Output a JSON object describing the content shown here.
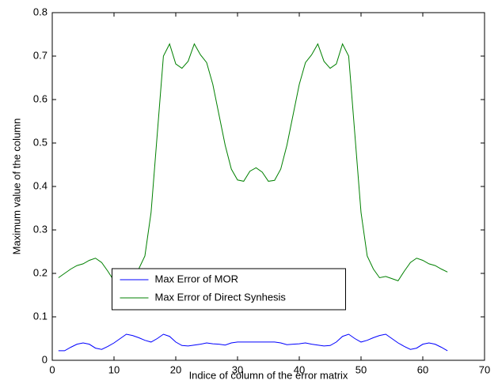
{
  "chart_data": {
    "type": "line",
    "xlabel": "Indice of column of the error matrix",
    "ylabel": "Maximum value of the column",
    "x": [
      1,
      2,
      3,
      4,
      5,
      6,
      7,
      8,
      9,
      10,
      11,
      12,
      13,
      14,
      15,
      16,
      17,
      18,
      19,
      20,
      21,
      22,
      23,
      24,
      25,
      26,
      27,
      28,
      29,
      30,
      31,
      32,
      33,
      34,
      35,
      36,
      37,
      38,
      39,
      40,
      41,
      42,
      43,
      44,
      45,
      46,
      47,
      48,
      49,
      50,
      51,
      52,
      53,
      54,
      55,
      56,
      57,
      58,
      59,
      60,
      61,
      62,
      63,
      64
    ],
    "series": [
      {
        "name": "Max Error of MOR",
        "color": "#0000ff",
        "values": [
          0.022,
          0.022,
          0.03,
          0.037,
          0.04,
          0.037,
          0.028,
          0.025,
          0.032,
          0.04,
          0.05,
          0.06,
          0.057,
          0.052,
          0.046,
          0.042,
          0.05,
          0.06,
          0.055,
          0.042,
          0.034,
          0.033,
          0.035,
          0.037,
          0.04,
          0.038,
          0.037,
          0.035,
          0.04,
          0.042,
          0.042,
          0.042,
          0.042,
          0.042,
          0.042,
          0.042,
          0.04,
          0.036,
          0.037,
          0.038,
          0.04,
          0.037,
          0.035,
          0.033,
          0.034,
          0.042,
          0.055,
          0.06,
          0.05,
          0.042,
          0.046,
          0.052,
          0.057,
          0.06,
          0.05,
          0.04,
          0.032,
          0.025,
          0.028,
          0.037,
          0.04,
          0.037,
          0.03,
          0.022
        ]
      },
      {
        "name": "Max Error of Direct Synhesis",
        "color": "#008000",
        "values": [
          0.19,
          0.2,
          0.21,
          0.218,
          0.222,
          0.23,
          0.235,
          0.225,
          0.205,
          0.183,
          0.188,
          0.193,
          0.19,
          0.21,
          0.24,
          0.34,
          0.52,
          0.7,
          0.728,
          0.682,
          0.672,
          0.688,
          0.728,
          0.703,
          0.685,
          0.635,
          0.565,
          0.495,
          0.44,
          0.415,
          0.412,
          0.435,
          0.443,
          0.433,
          0.412,
          0.414,
          0.44,
          0.495,
          0.565,
          0.635,
          0.685,
          0.703,
          0.728,
          0.688,
          0.672,
          0.682,
          0.728,
          0.7,
          0.52,
          0.34,
          0.24,
          0.21,
          0.19,
          0.193,
          0.188,
          0.183,
          0.205,
          0.225,
          0.235,
          0.23,
          0.222,
          0.218,
          0.21,
          0.203
        ]
      }
    ],
    "xlim": [
      0,
      70
    ],
    "xticks": [
      0,
      10,
      20,
      30,
      40,
      50,
      60,
      70
    ],
    "ylim": [
      0,
      0.8
    ],
    "yticks": [
      0,
      0.1,
      0.2,
      0.3,
      0.4,
      0.5,
      0.6,
      0.7,
      0.8
    ],
    "legend_loc": "lower center"
  }
}
